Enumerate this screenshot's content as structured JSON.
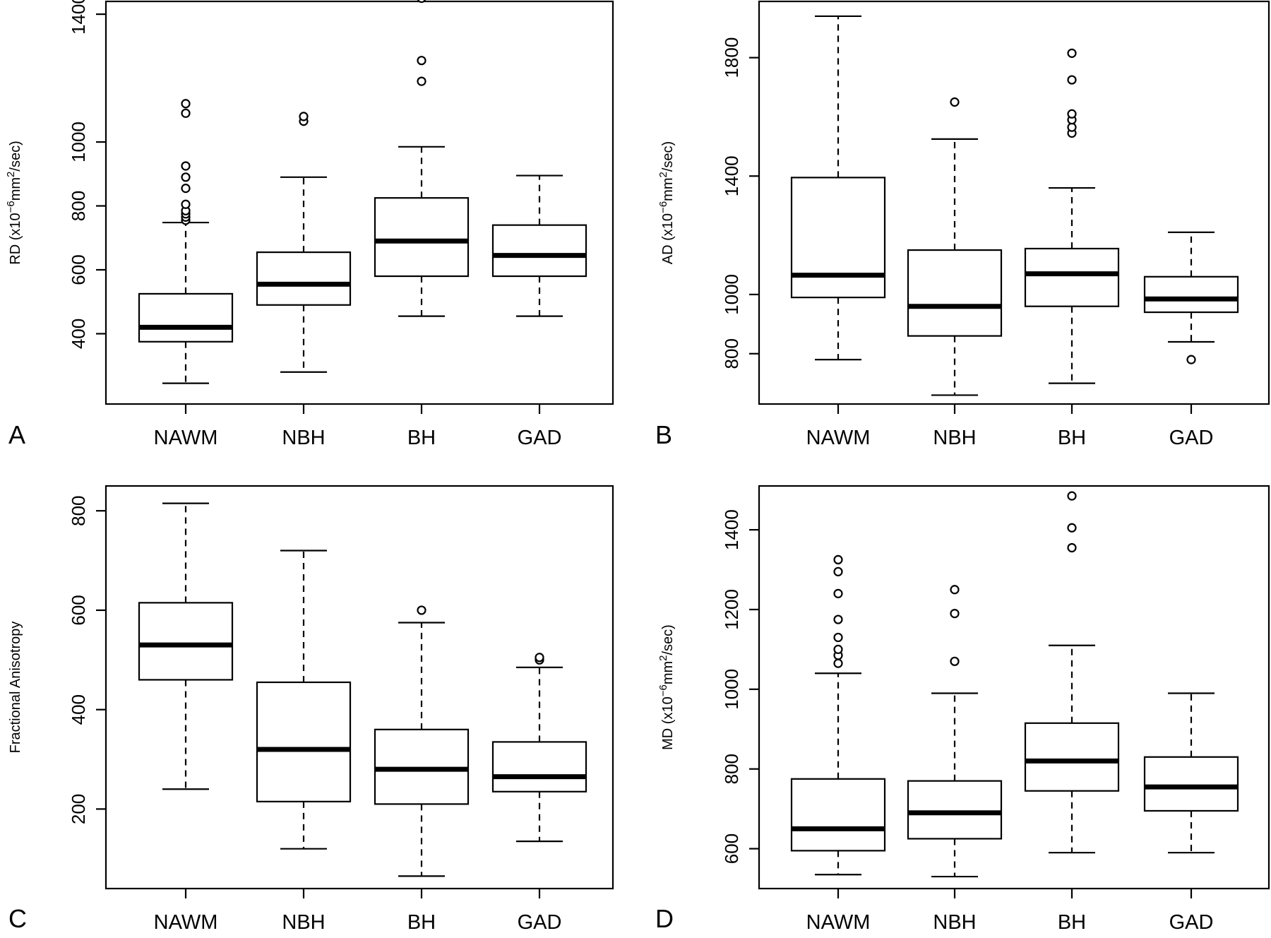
{
  "chart_data": [
    {
      "type": "box",
      "panel_label": "A",
      "ylabel_parts": [
        "RD (x10",
        "−6",
        "mm",
        "2",
        "/sec)"
      ],
      "categories": [
        "NAWM",
        "NBH",
        "BH",
        "GAD"
      ],
      "yticks": [
        400,
        600,
        800,
        1000,
        1400
      ],
      "ylim": [
        180,
        1440
      ],
      "boxes": [
        {
          "lower_whisker": 245,
          "q1": 375,
          "median": 420,
          "q3": 525,
          "upper_whisker": 748,
          "outliers": [
            755,
            765,
            775,
            785,
            805,
            855,
            890,
            925,
            1090,
            1120
          ]
        },
        {
          "lower_whisker": 280,
          "q1": 490,
          "median": 555,
          "q3": 655,
          "upper_whisker": 890,
          "outliers": [
            1065,
            1080
          ]
        },
        {
          "lower_whisker": 455,
          "q1": 580,
          "median": 690,
          "q3": 825,
          "upper_whisker": 985,
          "outliers": [
            1190,
            1255,
            1450
          ]
        },
        {
          "lower_whisker": 455,
          "q1": 580,
          "median": 645,
          "q3": 740,
          "upper_whisker": 895,
          "outliers": []
        }
      ]
    },
    {
      "type": "box",
      "panel_label": "B",
      "ylabel_parts": [
        "AD (x10",
        "−6",
        "mm",
        "2",
        "/sec)"
      ],
      "categories": [
        "NAWM",
        "NBH",
        "BH",
        "GAD"
      ],
      "yticks": [
        800,
        1000,
        1400,
        1800
      ],
      "ylim": [
        630,
        1990
      ],
      "boxes": [
        {
          "lower_whisker": 780,
          "q1": 990,
          "median": 1065,
          "q3": 1395,
          "upper_whisker": 1940,
          "outliers": []
        },
        {
          "lower_whisker": 660,
          "q1": 860,
          "median": 960,
          "q3": 1150,
          "upper_whisker": 1525,
          "outliers": [
            1650
          ]
        },
        {
          "lower_whisker": 700,
          "q1": 960,
          "median": 1070,
          "q3": 1155,
          "upper_whisker": 1360,
          "outliers": [
            1545,
            1565,
            1590,
            1610,
            1725,
            1815
          ]
        },
        {
          "lower_whisker": 840,
          "q1": 940,
          "median": 985,
          "q3": 1060,
          "upper_whisker": 1210,
          "outliers": [
            780
          ]
        }
      ]
    },
    {
      "type": "box",
      "panel_label": "C",
      "ylabel_parts": [
        "Fractional Anisotropy"
      ],
      "categories": [
        "NAWM",
        "NBH",
        "BH",
        "GAD"
      ],
      "yticks": [
        200,
        400,
        600,
        800
      ],
      "ylim": [
        40,
        850
      ],
      "boxes": [
        {
          "lower_whisker": 240,
          "q1": 460,
          "median": 530,
          "q3": 615,
          "upper_whisker": 815,
          "outliers": []
        },
        {
          "lower_whisker": 120,
          "q1": 215,
          "median": 320,
          "q3": 455,
          "upper_whisker": 720,
          "outliers": []
        },
        {
          "lower_whisker": 65,
          "q1": 210,
          "median": 280,
          "q3": 360,
          "upper_whisker": 575,
          "outliers": [
            600
          ]
        },
        {
          "lower_whisker": 135,
          "q1": 235,
          "median": 265,
          "q3": 335,
          "upper_whisker": 485,
          "outliers": [
            500,
            505
          ]
        }
      ]
    },
    {
      "type": "box",
      "panel_label": "D",
      "ylabel_parts": [
        "MD (x10",
        "−6",
        "mm",
        "2",
        "/sec)"
      ],
      "categories": [
        "NAWM",
        "NBH",
        "BH",
        "GAD"
      ],
      "yticks": [
        600,
        800,
        1000,
        1200,
        1400
      ],
      "ylim": [
        500,
        1510
      ],
      "boxes": [
        {
          "lower_whisker": 535,
          "q1": 595,
          "median": 650,
          "q3": 775,
          "upper_whisker": 1040,
          "outliers": [
            1065,
            1085,
            1100,
            1130,
            1175,
            1240,
            1295,
            1325
          ]
        },
        {
          "lower_whisker": 530,
          "q1": 625,
          "median": 690,
          "q3": 770,
          "upper_whisker": 990,
          "outliers": [
            1070,
            1190,
            1250
          ]
        },
        {
          "lower_whisker": 590,
          "q1": 745,
          "median": 820,
          "q3": 915,
          "upper_whisker": 1110,
          "outliers": [
            1355,
            1405,
            1485
          ]
        },
        {
          "lower_whisker": 590,
          "q1": 695,
          "median": 755,
          "q3": 830,
          "upper_whisker": 990,
          "outliers": []
        }
      ]
    }
  ]
}
